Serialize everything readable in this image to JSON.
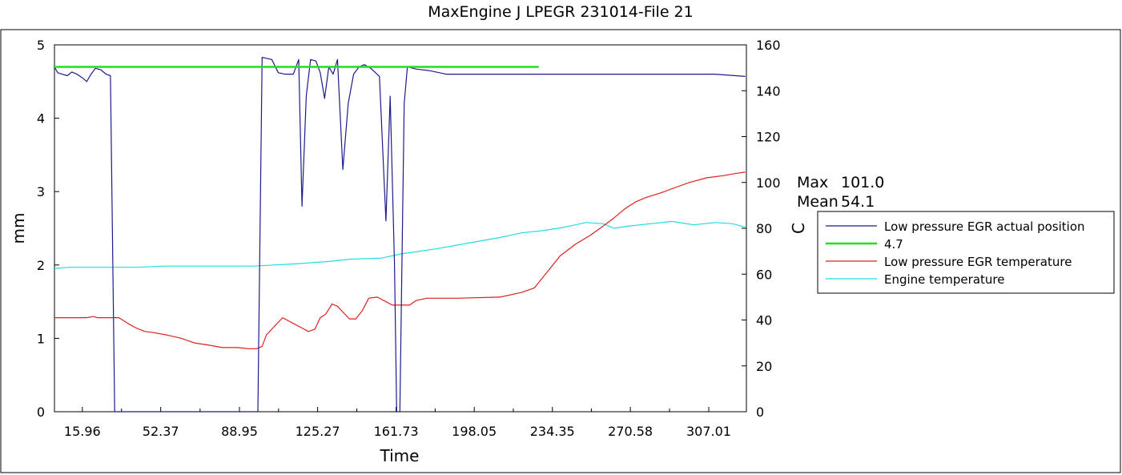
{
  "chart_data": {
    "type": "line",
    "title": "MaxEngine J LPEGR 231014-File 21",
    "xlabel": "Time",
    "ylabel_left": "mm",
    "ylabel_right": "C",
    "xlim": [
      3,
      324.5
    ],
    "ylim_left": [
      0,
      5
    ],
    "ylim_right": [
      0,
      160
    ],
    "x_ticks": [
      "15.96",
      "52.37",
      "88.95",
      "125.27",
      "161.73",
      "198.05",
      "234.35",
      "270.58",
      "307.01"
    ],
    "y_left_ticks": [
      "0",
      "1",
      "2",
      "3",
      "4",
      "5"
    ],
    "y_right_ticks": [
      "0",
      "20",
      "40",
      "60",
      "80",
      "100",
      "120",
      "140",
      "160"
    ],
    "stats": {
      "max_label": "Max",
      "max_value": "101.0",
      "mean_label": "Mean",
      "mean_value": "54.1"
    },
    "legend_position": "right",
    "grid": false,
    "series": [
      {
        "name": "Low pressure EGR actual position",
        "axis": "left",
        "color": "#1c1c8c",
        "points": [
          [
            3,
            4.7
          ],
          [
            4.5,
            4.62
          ],
          [
            6.5,
            4.6
          ],
          [
            9,
            4.58
          ],
          [
            11,
            4.63
          ],
          [
            13.5,
            4.6
          ],
          [
            16,
            4.55
          ],
          [
            18,
            4.5
          ],
          [
            20,
            4.6
          ],
          [
            22,
            4.68
          ],
          [
            24.5,
            4.66
          ],
          [
            27,
            4.6
          ],
          [
            29,
            4.58
          ],
          [
            31,
            0
          ],
          [
            97.5,
            0
          ],
          [
            99.5,
            4.83
          ],
          [
            104,
            4.8
          ],
          [
            107,
            4.62
          ],
          [
            110,
            4.6
          ],
          [
            114,
            4.6
          ],
          [
            116.5,
            4.8
          ],
          [
            118,
            2.8
          ],
          [
            120,
            4.3
          ],
          [
            122,
            4.8
          ],
          [
            124.5,
            4.78
          ],
          [
            126.5,
            4.62
          ],
          [
            128.5,
            4.27
          ],
          [
            130.5,
            4.7
          ],
          [
            132.5,
            4.6
          ],
          [
            134.5,
            4.8
          ],
          [
            137,
            3.3
          ],
          [
            139.5,
            4.2
          ],
          [
            142,
            4.6
          ],
          [
            144.5,
            4.7
          ],
          [
            147,
            4.73
          ],
          [
            150,
            4.68
          ],
          [
            154,
            4.57
          ],
          [
            157,
            2.6
          ],
          [
            159,
            4.3
          ],
          [
            161,
            2.0
          ],
          [
            162,
            0
          ],
          [
            163.5,
            0
          ],
          [
            165.5,
            4.2
          ],
          [
            167,
            4.7
          ],
          [
            171,
            4.67
          ],
          [
            177,
            4.65
          ],
          [
            185,
            4.6
          ],
          [
            200,
            4.6
          ],
          [
            230,
            4.6
          ],
          [
            260,
            4.6
          ],
          [
            290,
            4.6
          ],
          [
            310,
            4.6
          ],
          [
            324,
            4.57
          ]
        ]
      },
      {
        "name": "4.7",
        "axis": "left",
        "color": "#22dd22",
        "points": [
          [
            3,
            4.7
          ],
          [
            228,
            4.7
          ]
        ]
      },
      {
        "name": "Low pressure EGR temperature",
        "axis": "right",
        "color": "#dd2020",
        "points": [
          [
            3,
            41
          ],
          [
            18,
            41
          ],
          [
            21,
            41.5
          ],
          [
            23,
            41
          ],
          [
            33,
            41
          ],
          [
            38,
            38
          ],
          [
            41,
            36.5
          ],
          [
            45,
            35
          ],
          [
            49,
            34.5
          ],
          [
            55,
            33.5
          ],
          [
            62,
            32
          ],
          [
            68,
            30
          ],
          [
            75,
            29
          ],
          [
            81,
            28
          ],
          [
            88,
            28
          ],
          [
            93,
            27.5
          ],
          [
            97,
            27.5
          ],
          [
            99.5,
            28.5
          ],
          [
            101.5,
            33.5
          ],
          [
            104,
            36
          ],
          [
            109,
            41
          ],
          [
            114,
            38.5
          ],
          [
            118,
            36.5
          ],
          [
            121,
            35
          ],
          [
            124,
            36
          ],
          [
            126.5,
            41
          ],
          [
            129,
            42.5
          ],
          [
            132,
            47
          ],
          [
            134.5,
            46
          ],
          [
            137,
            43.5
          ],
          [
            140,
            40.5
          ],
          [
            143,
            40.5
          ],
          [
            146,
            44
          ],
          [
            149,
            49.5
          ],
          [
            153,
            50
          ],
          [
            156,
            48.5
          ],
          [
            160,
            46.5
          ],
          [
            164,
            46.5
          ],
          [
            168,
            46.5
          ],
          [
            171,
            48.5
          ],
          [
            176,
            49.5
          ],
          [
            190,
            49.5
          ],
          [
            210,
            50
          ],
          [
            220,
            52
          ],
          [
            226,
            54
          ],
          [
            232,
            61
          ],
          [
            238,
            68
          ],
          [
            245,
            73
          ],
          [
            252,
            77
          ],
          [
            258,
            81
          ],
          [
            263,
            84.5
          ],
          [
            268,
            88.5
          ],
          [
            273,
            91.5
          ],
          [
            278,
            93.5
          ],
          [
            285,
            95.5
          ],
          [
            292,
            98
          ],
          [
            298,
            100
          ],
          [
            306,
            102
          ],
          [
            314,
            103
          ],
          [
            320,
            104
          ],
          [
            324,
            104.5
          ]
        ]
      },
      {
        "name": "Engine temperature",
        "axis": "right",
        "color": "#22dddd",
        "points": [
          [
            3,
            62.5
          ],
          [
            10,
            63
          ],
          [
            20,
            63
          ],
          [
            40,
            63
          ],
          [
            55,
            63.5
          ],
          [
            80,
            63.5
          ],
          [
            95,
            63.5
          ],
          [
            105,
            64
          ],
          [
            115,
            64.5
          ],
          [
            130,
            65.5
          ],
          [
            140,
            66.5
          ],
          [
            155,
            67
          ],
          [
            165,
            69
          ],
          [
            180,
            71
          ],
          [
            195,
            73.5
          ],
          [
            210,
            76
          ],
          [
            220,
            78
          ],
          [
            230,
            79
          ],
          [
            240,
            80.5
          ],
          [
            250,
            82.5
          ],
          [
            258,
            82
          ],
          [
            263,
            80
          ],
          [
            270,
            81
          ],
          [
            280,
            82
          ],
          [
            290,
            83
          ],
          [
            300,
            81.5
          ],
          [
            310,
            82.5
          ],
          [
            318,
            82
          ],
          [
            324,
            80.5
          ]
        ]
      }
    ]
  }
}
